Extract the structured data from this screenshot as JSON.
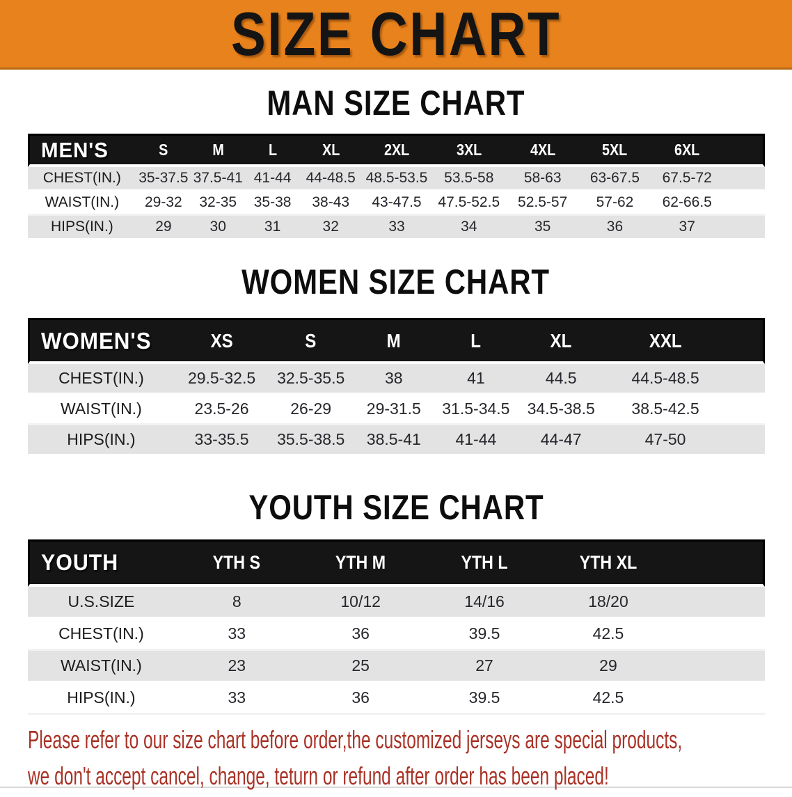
{
  "banner": {
    "title": "SIZE CHART",
    "bg_color": "#E8821C",
    "title_color": "#141414"
  },
  "sections": [
    {
      "heading": "MAN SIZE CHART",
      "table": {
        "label": "MEN'S",
        "columns": [
          "S",
          "M",
          "L",
          "XL",
          "2XL",
          "3XL",
          "4XL",
          "5XL",
          "6XL"
        ],
        "rows": [
          {
            "label": "CHEST(IN.)",
            "values": [
              "35-37.5",
              "37.5-41",
              "41-44",
              "44-48.5",
              "48.5-53.5",
              "53.5-58",
              "58-63",
              "63-67.5",
              "67.5-72"
            ]
          },
          {
            "label": "WAIST(IN.)",
            "values": [
              "29-32",
              "32-35",
              "35-38",
              "38-43",
              "43-47.5",
              "47.5-52.5",
              "52.5-57",
              "57-62",
              "62-66.5"
            ]
          },
          {
            "label": "HIPS(IN.)",
            "values": [
              "29",
              "30",
              "31",
              "32",
              "33",
              "34",
              "35",
              "36",
              "37"
            ]
          }
        ]
      }
    },
    {
      "heading": "WOMEN SIZE CHART",
      "table": {
        "label": "WOMEN'S",
        "columns": [
          "XS",
          "S",
          "M",
          "L",
          "XL",
          "XXL"
        ],
        "rows": [
          {
            "label": "CHEST(IN.)",
            "values": [
              "29.5-32.5",
              "32.5-35.5",
              "38",
              "41",
              "44.5",
              "44.5-48.5"
            ]
          },
          {
            "label": "WAIST(IN.)",
            "values": [
              "23.5-26",
              "26-29",
              "29-31.5",
              "31.5-34.5",
              "34.5-38.5",
              "38.5-42.5"
            ]
          },
          {
            "label": "HIPS(IN.)",
            "values": [
              "33-35.5",
              "35.5-38.5",
              "38.5-41",
              "41-44",
              "44-47",
              "47-50"
            ]
          }
        ]
      }
    },
    {
      "heading": "YOUTH SIZE CHART",
      "table": {
        "label": "YOUTH",
        "columns": [
          "YTH S",
          "YTH M",
          "YTH L",
          "YTH XL"
        ],
        "rows": [
          {
            "label": "U.S.SIZE",
            "values": [
              "8",
              "10/12",
              "14/16",
              "18/20"
            ]
          },
          {
            "label": "CHEST(IN.)",
            "values": [
              "33",
              "36",
              "39.5",
              "42.5"
            ]
          },
          {
            "label": "WAIST(IN.)",
            "values": [
              "23",
              "25",
              "27",
              "29"
            ]
          },
          {
            "label": "HIPS(IN.)",
            "values": [
              "33",
              "36",
              "39.5",
              "42.5"
            ]
          }
        ]
      }
    }
  ],
  "footer": {
    "line1": "Please refer to our size chart before order,the customized jerseys are special products,",
    "line2": "we don't accept cancel, change, teturn or refund after order has been placed!",
    "text_color": "#A93226"
  },
  "colors": {
    "banner_orange": "#E8821C",
    "table_header_black": "#151515",
    "row_stripe_gray": "#E3E3E3",
    "footer_red": "#A93226"
  }
}
